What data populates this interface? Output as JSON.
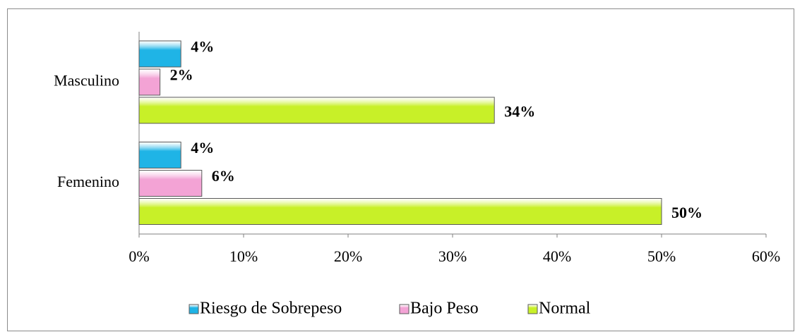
{
  "chart_data": {
    "type": "bar",
    "orientation": "horizontal",
    "categories": [
      "Masculino",
      "Femenino"
    ],
    "series": [
      {
        "name": "Riesgo de Sobrepeso",
        "color": "#1fb4e6",
        "values": [
          4,
          4
        ],
        "value_labels": [
          "4%",
          "4%"
        ]
      },
      {
        "name": "Bajo Peso",
        "color": "#f3a3d5",
        "values": [
          2,
          6
        ],
        "value_labels": [
          "2%",
          "6%"
        ]
      },
      {
        "name": "Normal",
        "color": "#c8f028",
        "values": [
          34,
          50
        ],
        "value_labels": [
          "34%",
          "50%"
        ]
      }
    ],
    "xlim": [
      0,
      60
    ],
    "xticks": [
      {
        "value": 0,
        "label": "0%"
      },
      {
        "value": 10,
        "label": "10%"
      },
      {
        "value": 20,
        "label": "20%"
      },
      {
        "value": 30,
        "label": "30%"
      },
      {
        "value": 40,
        "label": "40%"
      },
      {
        "value": 50,
        "label": "50%"
      },
      {
        "value": 60,
        "label": "60%"
      }
    ],
    "legend": "bottom"
  }
}
